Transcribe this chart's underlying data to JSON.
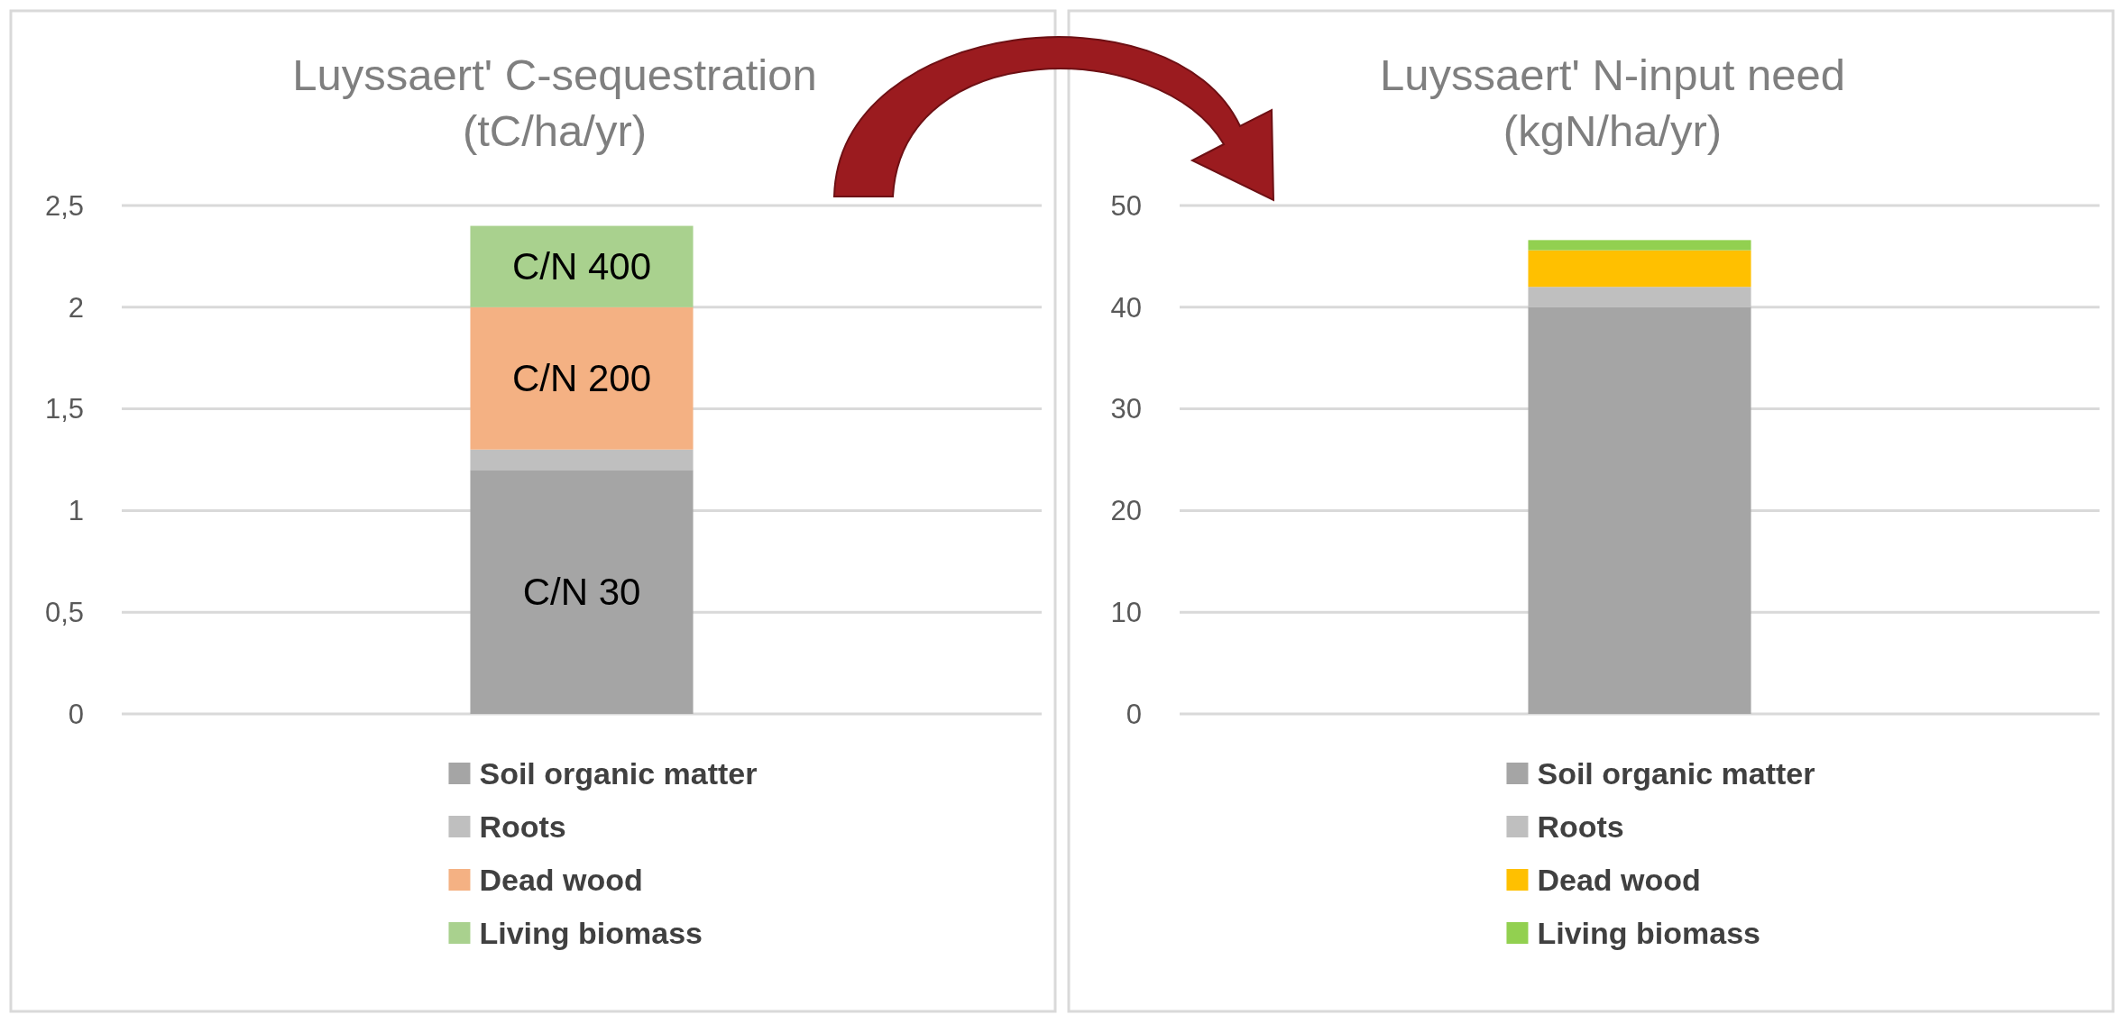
{
  "chart_data": [
    {
      "type": "bar",
      "stacked": true,
      "title": "Luyssaert' C-sequestration\n(tC/ha/yr)",
      "categories": [
        null
      ],
      "series": [
        {
          "name": "Soil organic matter",
          "color": "#a5a5a5",
          "values": [
            1.2
          ],
          "value_labels": [
            "C/N 30"
          ]
        },
        {
          "name": "Roots",
          "color": "#bfbfbf",
          "values": [
            0.1
          ]
        },
        {
          "name": "Dead wood",
          "color": "#f4b183",
          "values": [
            0.7
          ],
          "value_labels": [
            "C/N 200"
          ]
        },
        {
          "name": "Living biomass",
          "color": "#a9d18e",
          "values": [
            0.4
          ],
          "value_labels": [
            "C/N 400"
          ]
        }
      ],
      "ylim": [
        0,
        2.5
      ],
      "yticks": [
        0,
        {
          "value": 0.5,
          "label": "0,5"
        },
        1,
        {
          "value": 1.5,
          "label": "1,5"
        },
        2,
        {
          "value": 2.5,
          "label": "2,5"
        }
      ],
      "grid": "y",
      "legend": "bottom"
    },
    {
      "type": "bar",
      "stacked": true,
      "title": "Luyssaert' N-input need\n(kgN/ha/yr)",
      "categories": [
        null
      ],
      "series": [
        {
          "name": "Soil organic matter",
          "color": "#a5a5a5",
          "values": [
            40
          ]
        },
        {
          "name": "Roots",
          "color": "#bfbfbf",
          "values": [
            2
          ]
        },
        {
          "name": "Dead wood",
          "color": "#ffc000",
          "values": [
            3.6
          ]
        },
        {
          "name": "Living biomass",
          "color": "#92d050",
          "values": [
            1
          ]
        }
      ],
      "ylim": [
        0,
        50
      ],
      "yticks": [
        0,
        10,
        20,
        30,
        40,
        50
      ],
      "grid": "y",
      "legend": "bottom"
    }
  ]
}
